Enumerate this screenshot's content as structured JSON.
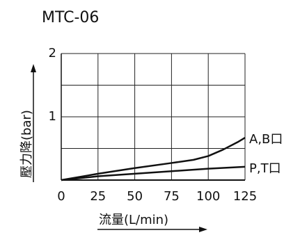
{
  "chart_data": {
    "type": "line",
    "title": "MTC-06",
    "xlabel": "流量(L/min)",
    "ylabel": "壓力降(bar)",
    "xlim": [
      0,
      125
    ],
    "ylim": [
      0,
      2
    ],
    "x_ticks": [
      "0",
      "25",
      "50",
      "75",
      "100",
      "125"
    ],
    "y_ticks": [
      "1",
      "2"
    ],
    "grid": true,
    "series": [
      {
        "name": "A,B口",
        "x": [
          0,
          25,
          50,
          75,
          90,
          100,
          110,
          120,
          125
        ],
        "y": [
          0,
          0.1,
          0.19,
          0.27,
          0.32,
          0.38,
          0.48,
          0.6,
          0.67
        ]
      },
      {
        "name": "P,T口",
        "x": [
          0,
          25,
          50,
          75,
          100,
          125
        ],
        "y": [
          0,
          0.06,
          0.1,
          0.14,
          0.18,
          0.21
        ]
      }
    ]
  }
}
